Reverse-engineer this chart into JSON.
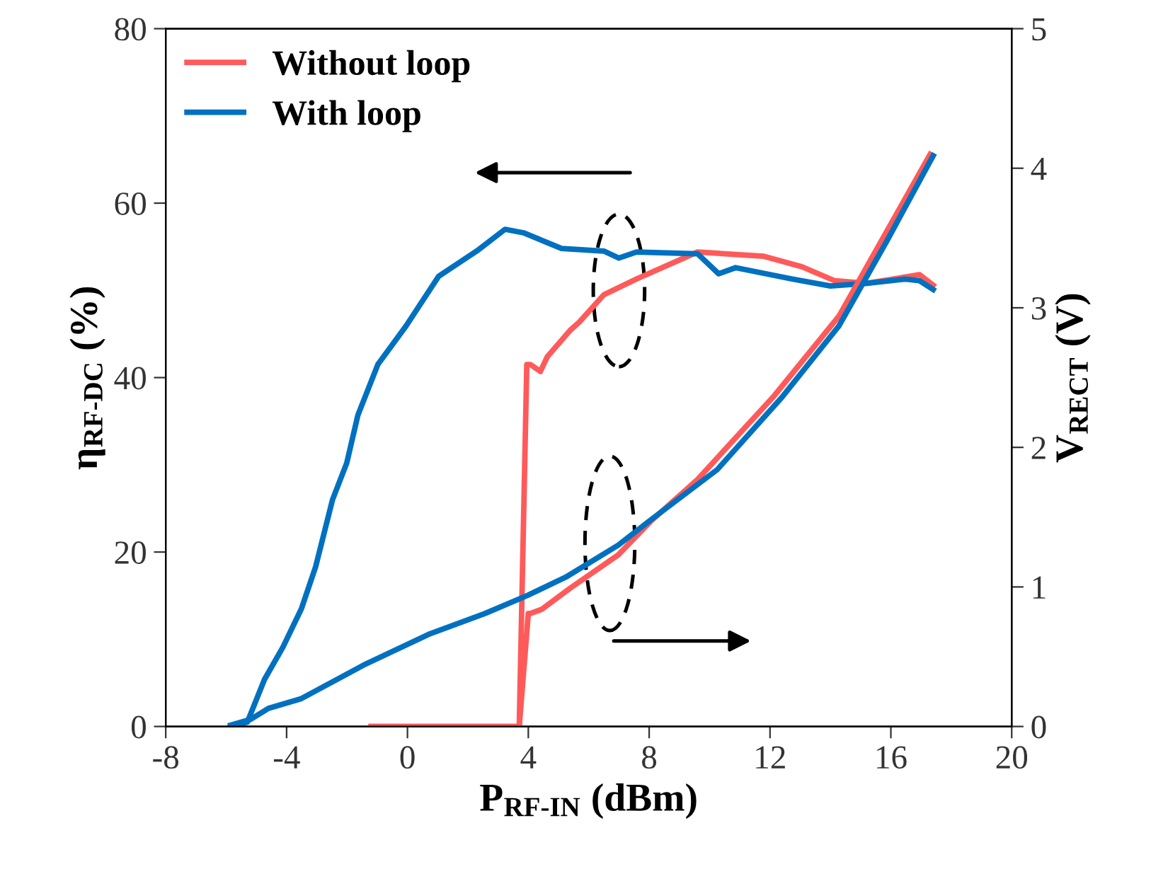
{
  "chart_data": {
    "type": "line",
    "xlabel": "P$_{RF-IN}$ (dBm)",
    "ylabel": "η$_{RF-DC}$ (%)",
    "y2label": "V$_{RECT}$ (V)",
    "xlim": [
      -8,
      20
    ],
    "xticks": [
      -8,
      -4,
      0,
      4,
      8,
      12,
      16,
      20
    ],
    "ylim": [
      0,
      80
    ],
    "yticks": [
      0,
      20,
      40,
      60,
      80
    ],
    "y2lim": [
      0,
      5
    ],
    "y2ticks": [
      0,
      1,
      2,
      3,
      4,
      5
    ],
    "grid": false,
    "legend": "top left",
    "marker": "none",
    "line_style": "solid",
    "series": [
      {
        "name": "Without loop",
        "color": "#ff5a5a",
        "x": [
          -1.2,
          3.7,
          3.95,
          4.07,
          4.4,
          4.63,
          5.38,
          5.7,
          6.5,
          7.58,
          9.6,
          11.8,
          13.06,
          14.14,
          15.2,
          16.95,
          17.4
        ],
        "values": [
          0,
          0,
          41.5,
          41.5,
          40.7,
          42.4,
          45.4,
          46.4,
          49.5,
          51.3,
          54.4,
          53.9,
          52.7,
          51.1,
          50.8,
          51.8,
          50.6
        ]
      },
      {
        "name": "With loop",
        "color": "#0070c0",
        "x": [
          -5.85,
          -5.3,
          -4.73,
          -4.12,
          -3.51,
          -3.04,
          -2.48,
          -2.01,
          -1.64,
          -0.98,
          -0.05,
          1.03,
          2.29,
          3.23,
          3.84,
          5.1,
          6.5,
          7.0,
          7.58,
          9.6,
          10.3,
          10.86,
          12.73,
          14.0,
          15.2,
          16.48,
          16.95,
          17.4
        ],
        "values": [
          0,
          0.5,
          5.4,
          9.1,
          13.5,
          18.3,
          26,
          30.2,
          35.7,
          41.5,
          45.9,
          51.6,
          54.5,
          57,
          56.6,
          54.8,
          54.5,
          53.7,
          54.4,
          54.2,
          51.9,
          52.6,
          51.3,
          50.5,
          50.8,
          51.3,
          51.1,
          50.1
        ]
      },
      {
        "color": "#ff5a5a",
        "axis": "y2",
        "x": [
          -1.2,
          3.7,
          4.0,
          4.07,
          4.45,
          5.38,
          6.98,
          8.05,
          9.6,
          12.1,
          14.28,
          15.87,
          17.3
        ],
        "values": [
          0,
          0,
          0.81,
          0.81,
          0.84,
          0.99,
          1.23,
          1.47,
          1.77,
          2.36,
          2.94,
          3.55,
          4.1
        ]
      },
      {
        "color": "#0070c0",
        "axis": "y2",
        "x": [
          -5.85,
          -5.2,
          -4.6,
          -3.51,
          -1.45,
          0.7,
          2.57,
          3.98,
          5.24,
          6.98,
          8.05,
          10.25,
          12.4,
          14.28,
          15.87,
          17.4
        ],
        "values": [
          0.01,
          0.05,
          0.13,
          0.2,
          0.44,
          0.66,
          0.81,
          0.94,
          1.07,
          1.3,
          1.48,
          1.84,
          2.36,
          2.87,
          3.48,
          4.09
        ]
      }
    ]
  }
}
